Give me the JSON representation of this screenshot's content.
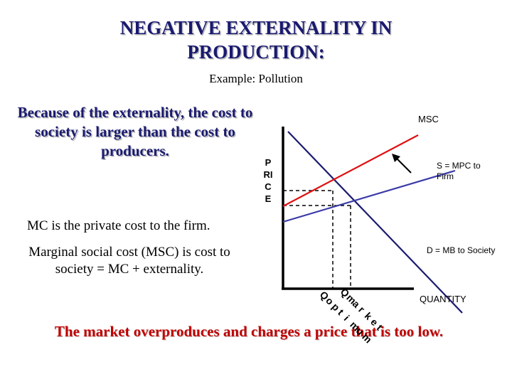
{
  "slide": {
    "title_line1": "NEGATIVE EXTERNALITY IN",
    "title_line2": "PRODUCTION:",
    "subtitle": "Example:  Pollution",
    "cause_text": "Because of the externality, the cost to society is larger than the cost to producers.",
    "mc_note": "MC is the private cost to the firm.",
    "msc_note": "Marginal social cost (MSC) is cost to society = MC + externality.",
    "conclusion": "The market overproduces and charges a price that is too low."
  },
  "diagram": {
    "price_axis_letters": [
      "P",
      "RI",
      "C",
      "E"
    ],
    "label_msc": "MSC",
    "label_supply": "S = MPC to Firm",
    "label_demand": "D = MB to Society",
    "label_quantity": "QUANTITY",
    "label_q_market": "Qmarket",
    "label_q_optimum": "Qoptimum",
    "colors": {
      "msc": "#e01010",
      "supply": "#3a3aa8",
      "demand": "#1a1a70",
      "axis": "#000000",
      "arrow": "#000000"
    }
  }
}
